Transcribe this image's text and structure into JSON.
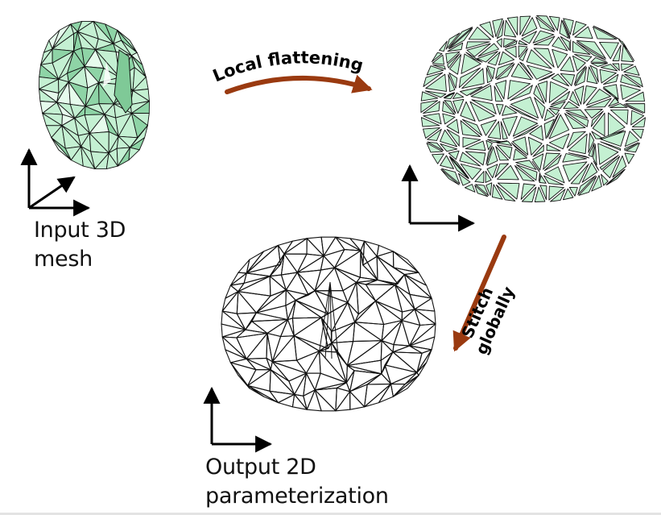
{
  "labels": {
    "input_line1": "Input 3D",
    "input_line2": "mesh",
    "output_line1": "Output 2D",
    "output_line2": "parameterization"
  },
  "arrows": {
    "local": "Local flattening",
    "stitch_line1": "Stitch",
    "stitch_line2": "globally"
  },
  "colors": {
    "mesh_fill": "#c4f0d2",
    "mesh_shade": "#8ed4a6",
    "edge": "#111111",
    "arrow": "#9a3a10",
    "axes": "#000000"
  }
}
